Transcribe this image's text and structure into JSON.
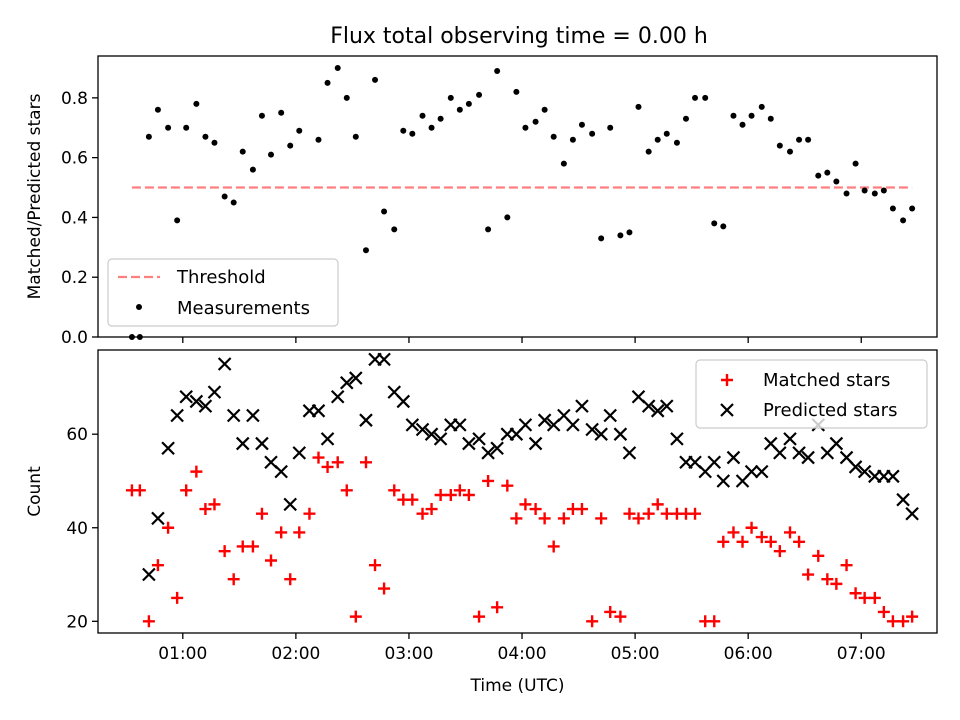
{
  "figure": {
    "title": "Flux total observing time = 0.00 h"
  },
  "chart_data": [
    {
      "type": "scatter",
      "ylabel": "Matched/Predicted stars",
      "ylim": [
        0.0,
        0.94
      ],
      "yticks": [
        "0.0",
        "0.2",
        "0.4",
        "0.6",
        "0.8"
      ],
      "xlim": [
        0.25,
        7.67
      ],
      "grid": false,
      "legend_placement": "lower-left",
      "colors": {
        "threshold": "#ff7f7f",
        "measurements": "#000000"
      },
      "threshold": {
        "name": "Threshold",
        "value": 0.5,
        "x_range": [
          0.55,
          7.45
        ]
      },
      "series": [
        {
          "name": "Measurements",
          "x": [
            0.55,
            0.62,
            0.7,
            0.78,
            0.87,
            0.95,
            1.03,
            1.12,
            1.2,
            1.28,
            1.37,
            1.45,
            1.53,
            1.62,
            1.7,
            1.78,
            1.87,
            1.95,
            2.03,
            2.2,
            2.28,
            2.37,
            2.45,
            2.53,
            2.62,
            2.7,
            2.78,
            2.87,
            2.95,
            3.03,
            3.12,
            3.2,
            3.28,
            3.37,
            3.45,
            3.53,
            3.62,
            3.7,
            3.78,
            3.87,
            3.95,
            4.03,
            4.12,
            4.2,
            4.28,
            4.37,
            4.45,
            4.53,
            4.62,
            4.7,
            4.78,
            4.87,
            4.95,
            5.03,
            5.12,
            5.2,
            5.28,
            5.37,
            5.45,
            5.53,
            5.62,
            5.7,
            5.78,
            5.87,
            5.95,
            6.03,
            6.12,
            6.2,
            6.28,
            6.37,
            6.45,
            6.53,
            6.62,
            6.7,
            6.78,
            6.87,
            6.95,
            7.03,
            7.12,
            7.2,
            7.28,
            7.37,
            7.45
          ],
          "y": [
            0.0,
            0.0,
            0.67,
            0.76,
            0.7,
            0.39,
            0.7,
            0.78,
            0.67,
            0.65,
            0.47,
            0.45,
            0.62,
            0.56,
            0.74,
            0.61,
            0.75,
            0.64,
            0.69,
            0.66,
            0.85,
            0.9,
            0.8,
            0.67,
            0.29,
            0.86,
            0.42,
            0.36,
            0.69,
            0.68,
            0.74,
            0.7,
            0.73,
            0.8,
            0.76,
            0.78,
            0.81,
            0.36,
            0.89,
            0.4,
            0.82,
            0.7,
            0.72,
            0.76,
            0.67,
            0.58,
            0.66,
            0.71,
            0.68,
            0.33,
            0.7,
            0.34,
            0.35,
            0.77,
            0.62,
            0.66,
            0.68,
            0.65,
            0.73,
            0.8,
            0.8,
            0.38,
            0.37,
            0.74,
            0.71,
            0.74,
            0.77,
            0.73,
            0.64,
            0.62,
            0.66,
            0.66,
            0.54,
            0.55,
            0.52,
            0.48,
            0.58,
            0.49,
            0.48,
            0.49,
            0.43,
            0.39,
            0.43
          ]
        }
      ]
    },
    {
      "type": "scatter",
      "xlabel": "Time (UTC)",
      "ylabel": "Count",
      "ylim": [
        17.5,
        78.0
      ],
      "yticks": [
        "20",
        "40",
        "60"
      ],
      "xlim": [
        0.25,
        7.67
      ],
      "xticks": [
        "01:00",
        "02:00",
        "03:00",
        "04:00",
        "05:00",
        "06:00",
        "07:00"
      ],
      "grid": false,
      "legend_placement": "upper-right",
      "colors": {
        "matched": "#ff0000",
        "predicted": "#000000"
      },
      "series": [
        {
          "name": "Matched stars",
          "x": [
            0.55,
            0.62,
            0.7,
            0.78,
            0.87,
            0.95,
            1.03,
            1.12,
            1.2,
            1.28,
            1.37,
            1.45,
            1.53,
            1.62,
            1.7,
            1.78,
            1.87,
            1.95,
            2.03,
            2.12,
            2.2,
            2.28,
            2.37,
            2.45,
            2.53,
            2.62,
            2.7,
            2.78,
            2.87,
            2.95,
            3.03,
            3.12,
            3.2,
            3.28,
            3.37,
            3.45,
            3.53,
            3.62,
            3.7,
            3.78,
            3.87,
            3.95,
            4.03,
            4.12,
            4.2,
            4.28,
            4.37,
            4.45,
            4.53,
            4.62,
            4.7,
            4.78,
            4.87,
            4.95,
            5.03,
            5.12,
            5.2,
            5.28,
            5.37,
            5.45,
            5.53,
            5.62,
            5.7,
            5.78,
            5.87,
            5.95,
            6.03,
            6.12,
            6.2,
            6.28,
            6.37,
            6.45,
            6.53,
            6.62,
            6.7,
            6.78,
            6.87,
            6.95,
            7.03,
            7.12,
            7.2,
            7.28,
            7.37,
            7.45
          ],
          "y": [
            48,
            48,
            20,
            32,
            40,
            25,
            48,
            52,
            44,
            45,
            35,
            29,
            36,
            36,
            43,
            33,
            39,
            29,
            39,
            43,
            55,
            53,
            54,
            48,
            21,
            54,
            32,
            27,
            48,
            46,
            46,
            43,
            44,
            47,
            47,
            48,
            47,
            21,
            50,
            23,
            49,
            42,
            45,
            44,
            42,
            36,
            42,
            44,
            44,
            20,
            42,
            22,
            21,
            43,
            42,
            43,
            45,
            43,
            43,
            43,
            43,
            20,
            20,
            37,
            39,
            37,
            40,
            38,
            37,
            35,
            39,
            37,
            30,
            34,
            29,
            28,
            32,
            26,
            25,
            25,
            22,
            20,
            20,
            21
          ]
        },
        {
          "name": "Predicted stars",
          "x": [
            0.7,
            0.78,
            0.87,
            0.95,
            1.03,
            1.12,
            1.2,
            1.28,
            1.37,
            1.45,
            1.53,
            1.62,
            1.7,
            1.78,
            1.87,
            1.95,
            2.03,
            2.12,
            2.2,
            2.28,
            2.37,
            2.45,
            2.53,
            2.62,
            2.7,
            2.78,
            2.87,
            2.95,
            3.03,
            3.12,
            3.2,
            3.28,
            3.37,
            3.45,
            3.53,
            3.62,
            3.7,
            3.78,
            3.87,
            3.95,
            4.03,
            4.12,
            4.2,
            4.28,
            4.37,
            4.45,
            4.53,
            4.62,
            4.7,
            4.78,
            4.87,
            4.95,
            5.03,
            5.12,
            5.2,
            5.28,
            5.37,
            5.45,
            5.53,
            5.62,
            5.7,
            5.78,
            5.87,
            5.95,
            6.03,
            6.12,
            6.2,
            6.28,
            6.37,
            6.45,
            6.53,
            6.62,
            6.7,
            6.78,
            6.87,
            6.95,
            7.03,
            7.12,
            7.2,
            7.28,
            7.37,
            7.45
          ],
          "y": [
            30,
            42,
            57,
            64,
            68,
            67,
            66,
            69,
            75,
            64,
            58,
            64,
            58,
            54,
            52,
            45,
            56,
            65,
            65,
            59,
            68,
            71,
            72,
            63,
            76,
            76,
            69,
            67,
            62,
            61,
            60,
            59,
            62,
            62,
            58,
            59,
            56,
            57,
            60,
            60,
            62,
            58,
            63,
            62,
            64,
            62,
            66,
            61,
            60,
            64,
            60,
            56,
            68,
            66,
            65,
            66,
            59,
            54,
            54,
            52,
            54,
            50,
            55,
            50,
            52,
            52,
            58,
            56,
            59,
            56,
            55,
            62,
            56,
            58,
            55,
            53,
            52,
            51,
            51,
            51,
            46,
            43
          ]
        }
      ]
    }
  ]
}
